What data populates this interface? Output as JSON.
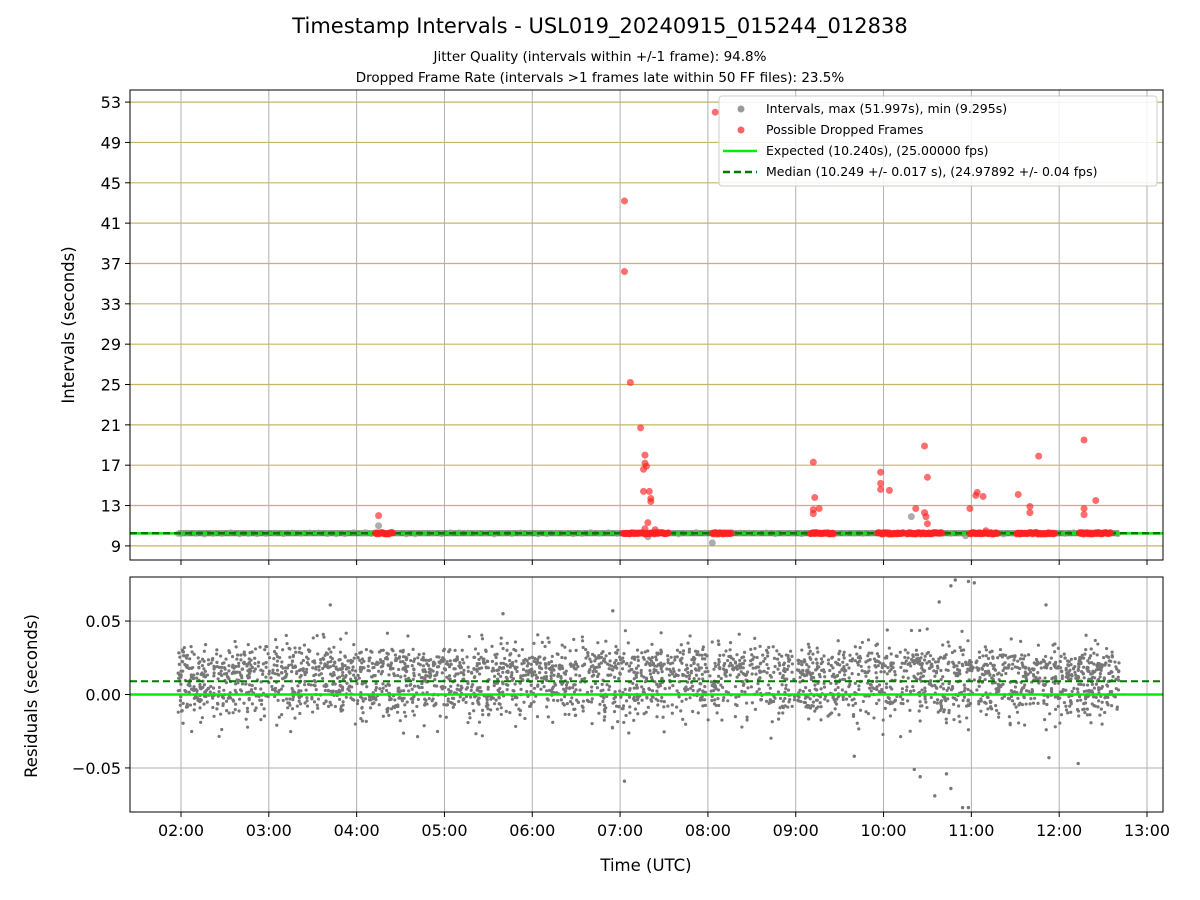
{
  "figure": {
    "title": "Timestamp Intervals - USL019_20240915_015244_012838",
    "subtitle_1": "Jitter Quality (intervals within +/-1 frame): 94.8%",
    "subtitle_2": "Dropped Frame Rate (intervals >1 frames late within 50 FF files): 23.5%"
  },
  "colors": {
    "intervals": "#999999",
    "dropped": "#ff2020",
    "expected": "#00ee00",
    "median": "#007a00",
    "residual_points": "#777777",
    "hgrid_top": "#c8b464",
    "vgrid": "#b0b0b0"
  },
  "chart_data": [
    {
      "type": "scatter",
      "name": "intervals",
      "ylabel": "Intervals (seconds)",
      "xlabel": "",
      "ylim": [
        7.6,
        54.2
      ],
      "yticks": [
        "9",
        "13",
        "17",
        "21",
        "25",
        "29",
        "33",
        "37",
        "41",
        "45",
        "49",
        "53"
      ],
      "grid": true,
      "legend_position": "top-right",
      "legend": [
        "Intervals, max (51.997s), min (9.295s)",
        "Possible Dropped Frames",
        "Expected (10.240s), (25.00000 fps)",
        "Median (10.249 +/- 0.017 s), (24.97892 +/- 0.04 fps)"
      ],
      "expected_interval": 10.24,
      "median_interval": 10.249,
      "outlier_intervals": [
        {
          "time": "02:00",
          "value": 10.24
        },
        {
          "time": "04:06",
          "value": 10.3
        },
        {
          "time": "04:15",
          "value": 11.0
        },
        {
          "time": "08:03",
          "value": 9.3
        },
        {
          "time": "10:19",
          "value": 11.9
        },
        {
          "time": "10:56",
          "value": 10.0
        },
        {
          "time": "07:19",
          "value": 9.9
        }
      ],
      "dropped_frames": [
        {
          "time": "04:15",
          "value": 12.0
        },
        {
          "time": "07:03",
          "value": 43.2
        },
        {
          "time": "07:03",
          "value": 36.2
        },
        {
          "time": "07:07",
          "value": 25.2
        },
        {
          "time": "07:14",
          "value": 20.7
        },
        {
          "time": "07:17",
          "value": 18.0
        },
        {
          "time": "07:17",
          "value": 17.2
        },
        {
          "time": "07:18",
          "value": 16.9
        },
        {
          "time": "07:16",
          "value": 16.6
        },
        {
          "time": "07:16",
          "value": 14.4
        },
        {
          "time": "07:20",
          "value": 14.4
        },
        {
          "time": "07:21",
          "value": 13.7
        },
        {
          "time": "07:21",
          "value": 13.4
        },
        {
          "time": "07:19",
          "value": 11.3
        },
        {
          "time": "07:17",
          "value": 10.7
        },
        {
          "time": "07:24",
          "value": 10.6
        },
        {
          "time": "08:05",
          "value": 52.0
        },
        {
          "time": "09:12",
          "value": 17.3
        },
        {
          "time": "09:13",
          "value": 13.8
        },
        {
          "time": "09:16",
          "value": 12.7
        },
        {
          "time": "09:12",
          "value": 12.6
        },
        {
          "time": "09:12",
          "value": 12.2
        },
        {
          "time": "09:58",
          "value": 16.3
        },
        {
          "time": "09:58",
          "value": 15.2
        },
        {
          "time": "09:58",
          "value": 14.6
        },
        {
          "time": "10:04",
          "value": 14.5
        },
        {
          "time": "10:22",
          "value": 12.7
        },
        {
          "time": "10:28",
          "value": 12.3
        },
        {
          "time": "10:29",
          "value": 11.9
        },
        {
          "time": "10:30",
          "value": 11.2
        },
        {
          "time": "10:28",
          "value": 18.9
        },
        {
          "time": "10:30",
          "value": 15.8
        },
        {
          "time": "10:59",
          "value": 12.7
        },
        {
          "time": "11:03",
          "value": 14.0
        },
        {
          "time": "11:04",
          "value": 14.3
        },
        {
          "time": "11:08",
          "value": 13.9
        },
        {
          "time": "11:10",
          "value": 10.5
        },
        {
          "time": "11:32",
          "value": 14.1
        },
        {
          "time": "11:40",
          "value": 12.9
        },
        {
          "time": "11:40",
          "value": 12.3
        },
        {
          "time": "11:46",
          "value": 17.9
        },
        {
          "time": "12:17",
          "value": 19.5
        },
        {
          "time": "12:17",
          "value": 12.7
        },
        {
          "time": "12:17",
          "value": 12.1
        },
        {
          "time": "12:25",
          "value": 13.5
        }
      ],
      "dropped_frame_clusters_at_median": [
        {
          "start": "04:13",
          "end": "04:25"
        },
        {
          "start": "07:02",
          "end": "07:33"
        },
        {
          "start": "08:03",
          "end": "08:16"
        },
        {
          "start": "09:10",
          "end": "09:26"
        },
        {
          "start": "09:56",
          "end": "10:14"
        },
        {
          "start": "10:16",
          "end": "10:40"
        },
        {
          "start": "10:59",
          "end": "11:18"
        },
        {
          "start": "11:31",
          "end": "11:57"
        },
        {
          "start": "12:14",
          "end": "12:35"
        }
      ]
    },
    {
      "type": "scatter",
      "name": "residuals",
      "ylabel": "Residuals (seconds)",
      "xlabel": "Time (UTC)",
      "ylim": [
        -0.08,
        0.08
      ],
      "yticks": [
        "−0.05",
        "0.00",
        "0.05"
      ],
      "xticks": [
        "02:00",
        "03:00",
        "04:00",
        "05:00",
        "06:00",
        "07:00",
        "08:00",
        "09:00",
        "10:00",
        "11:00",
        "12:00",
        "13:00"
      ],
      "grid": true,
      "time_range": [
        "01:58",
        "12:41"
      ],
      "expected_line": 0.0,
      "median_line": 0.009,
      "residual_band": [
        -0.03,
        0.045
      ],
      "outliers": [
        {
          "time": "03:42",
          "value": 0.061
        },
        {
          "time": "05:40",
          "value": 0.055
        },
        {
          "time": "06:55",
          "value": 0.057
        },
        {
          "time": "07:03",
          "value": -0.059
        },
        {
          "time": "10:21",
          "value": -0.051
        },
        {
          "time": "10:25",
          "value": -0.056
        },
        {
          "time": "10:35",
          "value": -0.069
        },
        {
          "time": "10:43",
          "value": -0.054
        },
        {
          "time": "10:46",
          "value": -0.064
        },
        {
          "time": "10:54",
          "value": -0.077
        },
        {
          "time": "10:58",
          "value": -0.077
        },
        {
          "time": "10:38",
          "value": 0.063
        },
        {
          "time": "10:46",
          "value": 0.074
        },
        {
          "time": "10:49",
          "value": 0.078
        },
        {
          "time": "10:58",
          "value": 0.077
        },
        {
          "time": "11:02",
          "value": 0.076
        },
        {
          "time": "11:51",
          "value": 0.061
        },
        {
          "time": "11:53",
          "value": -0.043
        },
        {
          "time": "12:13",
          "value": -0.047
        },
        {
          "time": "09:40",
          "value": -0.042
        }
      ]
    }
  ]
}
